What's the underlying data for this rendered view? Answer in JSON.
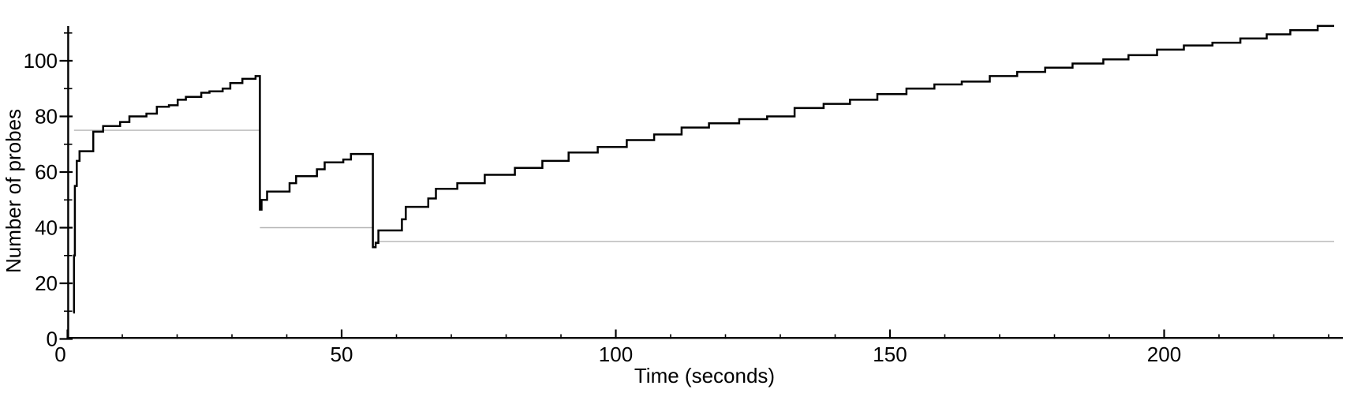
{
  "chart_data": {
    "type": "line",
    "subtype": "step-post",
    "title": "",
    "xlabel": "Time (seconds)",
    "ylabel": "Number of probes",
    "xlim": [
      0,
      232
    ],
    "ylim": [
      0,
      118
    ],
    "grid": false,
    "legend": null,
    "x_major_ticks": [
      0,
      50,
      100,
      150,
      200
    ],
    "x_minor_ticks": [
      10,
      20,
      30,
      40,
      60,
      70,
      80,
      90,
      110,
      120,
      130,
      140,
      160,
      170,
      180,
      190,
      210,
      220,
      230
    ],
    "y_major_ticks": [
      0,
      20,
      40,
      60,
      80,
      100
    ],
    "y_minor_ticks": [
      10,
      30,
      50,
      70,
      90,
      110
    ],
    "colors": {
      "series": "#000000",
      "reference": "#b4b4b4",
      "axis": "#000000",
      "background": "#ffffff"
    },
    "series": [
      {
        "name": "number-of-probes",
        "style": "step",
        "end_t": 231,
        "points": [
          [
            1.05,
            9.5
          ],
          [
            1.2,
            30
          ],
          [
            1.35,
            55
          ],
          [
            1.7,
            64
          ],
          [
            2.2,
            67.5
          ],
          [
            4.7,
            74.5
          ],
          [
            6.5,
            76.5
          ],
          [
            9.6,
            78
          ],
          [
            11.3,
            80
          ],
          [
            14.4,
            81
          ],
          [
            16.3,
            83.5
          ],
          [
            18.5,
            84
          ],
          [
            20.1,
            86
          ],
          [
            21.6,
            87
          ],
          [
            24.4,
            88.5
          ],
          [
            25.9,
            89
          ],
          [
            28.3,
            90
          ],
          [
            29.7,
            92
          ],
          [
            31.9,
            93.5
          ],
          [
            34.3,
            94.5
          ],
          [
            35.1,
            46.5
          ],
          [
            35.4,
            50
          ],
          [
            36.4,
            53
          ],
          [
            40.5,
            56
          ],
          [
            41.7,
            58.5
          ],
          [
            45.5,
            61
          ],
          [
            46.9,
            63.5
          ],
          [
            50.3,
            64.5
          ],
          [
            51.7,
            66.5
          ],
          [
            55.7,
            33
          ],
          [
            56.2,
            34.5
          ],
          [
            56.7,
            39
          ],
          [
            61,
            43
          ],
          [
            61.7,
            47.5
          ],
          [
            65.8,
            50.5
          ],
          [
            67.2,
            54
          ],
          [
            71.1,
            56
          ],
          [
            76.1,
            59
          ],
          [
            81.6,
            61.5
          ],
          [
            86.6,
            64
          ],
          [
            91.4,
            67
          ],
          [
            96.7,
            69
          ],
          [
            102,
            71.5
          ],
          [
            107,
            73.5
          ],
          [
            112,
            76
          ],
          [
            117,
            77.5
          ],
          [
            122.5,
            79
          ],
          [
            127.6,
            80
          ],
          [
            132.6,
            83
          ],
          [
            137.9,
            84.5
          ],
          [
            142.7,
            86
          ],
          [
            147.7,
            88
          ],
          [
            153,
            90
          ],
          [
            158.1,
            91.5
          ],
          [
            163.1,
            92.5
          ],
          [
            168.2,
            94.5
          ],
          [
            173.2,
            96
          ],
          [
            178.3,
            97.5
          ],
          [
            183.3,
            99
          ],
          [
            188.9,
            100.5
          ],
          [
            193.5,
            102
          ],
          [
            198.7,
            104
          ],
          [
            203.6,
            105.5
          ],
          [
            208.8,
            106.5
          ],
          [
            213.9,
            108
          ],
          [
            218.7,
            109.5
          ],
          [
            223,
            111
          ],
          [
            228,
            112.5
          ]
        ]
      }
    ],
    "reference_lines": [
      {
        "y": 75,
        "t_from": 1.2,
        "t_to": 35.1
      },
      {
        "y": 40,
        "t_from": 35.1,
        "t_to": 55.7
      },
      {
        "y": 35,
        "t_from": 56,
        "t_to": 231
      }
    ]
  }
}
